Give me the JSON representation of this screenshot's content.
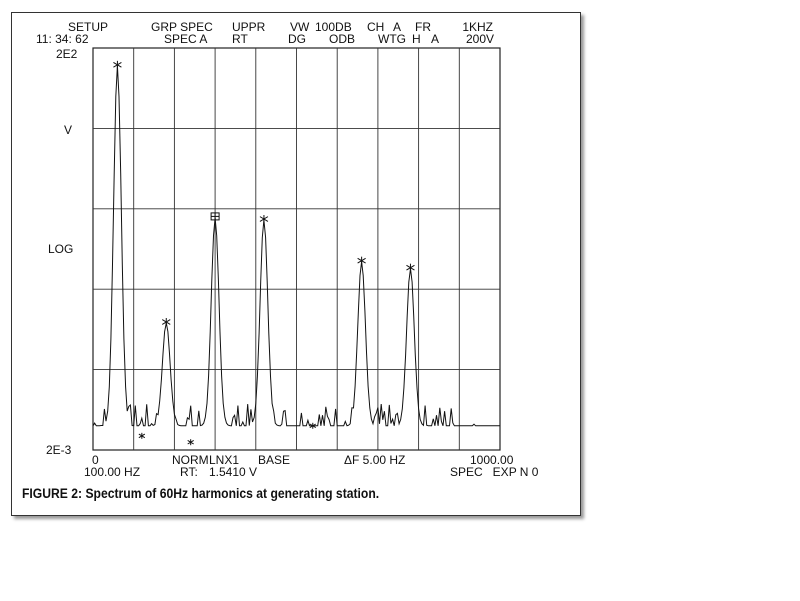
{
  "header": {
    "setup": "SETUP",
    "time": "11: 34: 62",
    "grp_spec": "GRP SPEC",
    "spec_a": "SPEC A",
    "uppr": "UPPR",
    "rt": "RT",
    "vw": "VW",
    "dg": "DG",
    "range": "100DB",
    "odb": "ODB",
    "ch": "CH",
    "ch_val": "A",
    "wtg": "WTG",
    "wtg_val": "H",
    "fr": "FR",
    "fr_val": "A",
    "freq": "1KHZ",
    "volt": "200V"
  },
  "footer": {
    "start": "0",
    "start_freq": "100.00 HZ",
    "norm": "NORM",
    "rt": "RT:",
    "lnx": "LNX1",
    "marker_value": "1.5410 V",
    "base": "BASE",
    "delta_f": "ΔF 5.00 HZ",
    "end": "1000.00",
    "spec_exp": "SPEC   EXP N 0"
  },
  "caption": "FIGURE 2: Spectrum of 60Hz harmonics at generating station.",
  "chart_data": {
    "type": "line",
    "title": "",
    "xlabel": "",
    "ylabel": "",
    "y_axis_labels": {
      "top": "2E2",
      "unit": "V",
      "scale": "LOG",
      "bottom": "2E-3"
    },
    "xlim": [
      0,
      1000
    ],
    "ylim": [
      0.002,
      200
    ],
    "yscale": "log",
    "grid": true,
    "x_divisions": 10,
    "y_divisions": 5,
    "line_color": "#111111",
    "peaks": [
      {
        "x": 60,
        "y": 120,
        "marker": "star"
      },
      {
        "x": 180,
        "y": 0.076,
        "marker": "star"
      },
      {
        "x": 300,
        "y": 1.541,
        "marker": "box"
      },
      {
        "x": 420,
        "y": 1.45,
        "marker": "star"
      },
      {
        "x": 660,
        "y": 0.44,
        "marker": "star"
      },
      {
        "x": 780,
        "y": 0.36,
        "marker": "star"
      }
    ],
    "minor_markers": [
      {
        "x": 120,
        "y": 0.003
      },
      {
        "x": 240,
        "y": 0.0025
      },
      {
        "x": 540,
        "y": 0.004
      }
    ],
    "noise_floor": 0.004
  }
}
